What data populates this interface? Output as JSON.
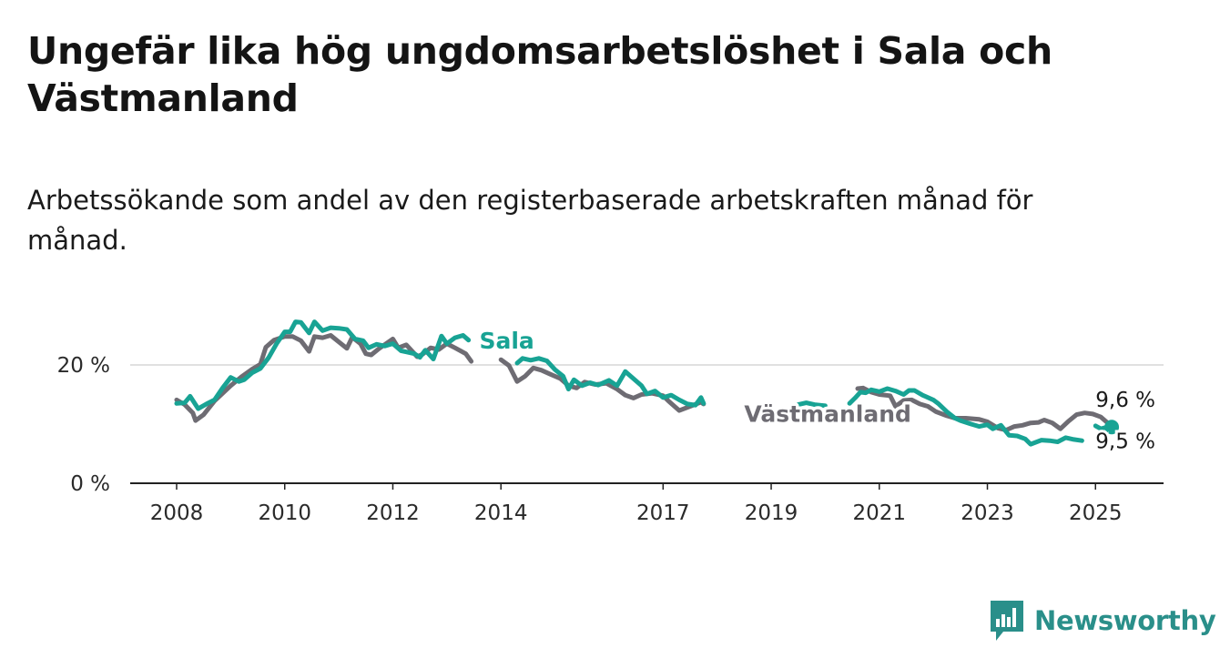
{
  "title": "Ungefär lika hög ungdomsarbetslöshet i Sala och Västmanland",
  "subtitle": "Arbetssökande som andel av den registerbaserade arbetskraften månad för månad.",
  "brand": {
    "name": "Newsworthy",
    "color": "#2a8f8a",
    "icon": "newsworthy-logo-icon"
  },
  "chart_data": {
    "type": "line",
    "title": "Ungefär lika hög ungdomsarbetslöshet i Sala och Västmanland",
    "subtitle": "Arbetssökande som andel av den registerbaserade arbetskraften månad för månad.",
    "xlabel": "",
    "ylabel": "",
    "x_ticks": [
      "2008",
      "2010",
      "2012",
      "2014",
      "2017",
      "2019",
      "2021",
      "2023",
      "2025"
    ],
    "x_tick_values": [
      2008,
      2010,
      2012,
      2014,
      2017,
      2019,
      2021,
      2023,
      2025
    ],
    "y_ticks": [
      "0 %",
      "20 %"
    ],
    "y_tick_values": [
      0,
      20
    ],
    "xlim": [
      2008,
      2025.4
    ],
    "ylim": [
      0,
      30
    ],
    "grid": true,
    "legend": "inline labels",
    "series": [
      {
        "name": "Sala",
        "color": "#18a394",
        "end_label": "9,5 %",
        "segments": [
          [
            [
              2008.0,
              13.5
            ],
            [
              2008.15,
              13.6
            ],
            [
              2008.25,
              14.7
            ],
            [
              2008.4,
              12.6
            ],
            [
              2008.55,
              13.4
            ],
            [
              2008.7,
              14.1
            ],
            [
              2008.85,
              16.1
            ],
            [
              2009.0,
              17.9
            ],
            [
              2009.15,
              17.2
            ],
            [
              2009.25,
              17.5
            ],
            [
              2009.4,
              18.7
            ],
            [
              2009.55,
              19.4
            ],
            [
              2009.7,
              21.2
            ],
            [
              2009.85,
              23.6
            ],
            [
              2010.0,
              25.6
            ],
            [
              2010.1,
              25.6
            ],
            [
              2010.2,
              27.3
            ],
            [
              2010.3,
              27.2
            ],
            [
              2010.45,
              25.4
            ],
            [
              2010.55,
              27.3
            ],
            [
              2010.7,
              25.8
            ],
            [
              2010.85,
              26.3
            ],
            [
              2011.0,
              26.2
            ],
            [
              2011.15,
              26.0
            ],
            [
              2011.3,
              24.4
            ],
            [
              2011.45,
              24.1
            ],
            [
              2011.55,
              22.9
            ],
            [
              2011.7,
              23.5
            ],
            [
              2011.85,
              23.2
            ],
            [
              2012.0,
              23.6
            ],
            [
              2012.15,
              22.4
            ],
            [
              2012.25,
              22.2
            ],
            [
              2012.4,
              21.9
            ],
            [
              2012.5,
              21.3
            ],
            [
              2012.6,
              22.5
            ],
            [
              2012.75,
              21.0
            ],
            [
              2012.9,
              24.9
            ],
            [
              2013.0,
              23.6
            ],
            [
              2013.15,
              24.6
            ],
            [
              2013.3,
              25.0
            ],
            [
              2013.4,
              24.2
            ]
          ],
          [
            [
              2014.3,
              20.3
            ],
            [
              2014.4,
              21.1
            ],
            [
              2014.55,
              20.8
            ],
            [
              2014.7,
              21.1
            ],
            [
              2014.85,
              20.7
            ],
            [
              2015.0,
              19.2
            ],
            [
              2015.15,
              18.1
            ],
            [
              2015.25,
              15.9
            ],
            [
              2015.35,
              17.5
            ],
            [
              2015.5,
              16.5
            ],
            [
              2015.65,
              17.0
            ],
            [
              2015.8,
              16.6
            ],
            [
              2016.0,
              17.4
            ],
            [
              2016.15,
              16.5
            ],
            [
              2016.3,
              18.9
            ],
            [
              2016.45,
              17.7
            ],
            [
              2016.6,
              16.5
            ],
            [
              2016.7,
              15.1
            ],
            [
              2016.85,
              15.6
            ],
            [
              2017.0,
              14.5
            ],
            [
              2017.15,
              14.9
            ],
            [
              2017.3,
              14.1
            ],
            [
              2017.45,
              13.4
            ],
            [
              2017.6,
              13.2
            ],
            [
              2017.7,
              14.5
            ],
            [
              2017.75,
              13.5
            ]
          ],
          [
            [
              2019.5,
              13.3
            ],
            [
              2019.65,
              13.6
            ],
            [
              2019.8,
              13.3
            ],
            [
              2020.0,
              13.1
            ]
          ],
          [
            [
              2020.45,
              13.5
            ],
            [
              2020.55,
              14.4
            ],
            [
              2020.65,
              15.4
            ],
            [
              2020.75,
              15.3
            ],
            [
              2020.85,
              15.8
            ],
            [
              2021.0,
              15.5
            ],
            [
              2021.15,
              16.0
            ],
            [
              2021.3,
              15.6
            ],
            [
              2021.45,
              15.0
            ],
            [
              2021.55,
              15.7
            ],
            [
              2021.65,
              15.7
            ],
            [
              2021.8,
              14.9
            ],
            [
              2022.0,
              14.1
            ],
            [
              2022.1,
              13.4
            ],
            [
              2022.25,
              12.1
            ],
            [
              2022.4,
              11.0
            ],
            [
              2022.5,
              10.6
            ],
            [
              2022.7,
              10.0
            ],
            [
              2022.85,
              9.6
            ],
            [
              2023.0,
              9.9
            ],
            [
              2023.1,
              9.2
            ],
            [
              2023.25,
              9.8
            ],
            [
              2023.4,
              8.1
            ],
            [
              2023.55,
              8.0
            ],
            [
              2023.7,
              7.5
            ],
            [
              2023.8,
              6.6
            ],
            [
              2024.0,
              7.3
            ],
            [
              2024.15,
              7.2
            ],
            [
              2024.3,
              7.0
            ],
            [
              2024.45,
              7.7
            ],
            [
              2024.6,
              7.4
            ],
            [
              2024.75,
              7.2
            ]
          ],
          [
            [
              2025.0,
              9.7
            ],
            [
              2025.1,
              9.2
            ],
            [
              2025.25,
              9.6
            ],
            [
              2025.3,
              9.5
            ]
          ]
        ]
      },
      {
        "name": "Västmanland",
        "color": "#6e6c73",
        "end_label": "9,6 %",
        "segments": [
          [
            [
              2008.0,
              14.1
            ],
            [
              2008.15,
              13.3
            ],
            [
              2008.3,
              11.9
            ],
            [
              2008.35,
              10.6
            ],
            [
              2008.5,
              11.6
            ],
            [
              2008.7,
              13.9
            ],
            [
              2008.85,
              15.2
            ],
            [
              2009.0,
              16.5
            ],
            [
              2009.2,
              18.0
            ],
            [
              2009.4,
              19.3
            ],
            [
              2009.55,
              20.1
            ],
            [
              2009.65,
              23.0
            ],
            [
              2009.8,
              24.2
            ],
            [
              2010.0,
              24.8
            ],
            [
              2010.15,
              24.8
            ],
            [
              2010.3,
              24.1
            ],
            [
              2010.45,
              22.3
            ],
            [
              2010.55,
              24.8
            ],
            [
              2010.7,
              24.6
            ],
            [
              2010.85,
              25.0
            ],
            [
              2011.0,
              23.9
            ],
            [
              2011.15,
              22.8
            ],
            [
              2011.25,
              24.7
            ],
            [
              2011.4,
              23.6
            ],
            [
              2011.5,
              21.9
            ],
            [
              2011.6,
              21.7
            ],
            [
              2011.75,
              22.8
            ],
            [
              2012.0,
              24.4
            ],
            [
              2012.1,
              22.9
            ],
            [
              2012.25,
              23.4
            ],
            [
              2012.45,
              21.4
            ],
            [
              2012.55,
              21.8
            ],
            [
              2012.7,
              22.9
            ],
            [
              2012.85,
              22.6
            ],
            [
              2013.0,
              23.6
            ],
            [
              2013.15,
              22.9
            ],
            [
              2013.35,
              21.9
            ],
            [
              2013.45,
              20.6
            ]
          ],
          [
            [
              2014.0,
              20.9
            ],
            [
              2014.15,
              19.9
            ],
            [
              2014.3,
              17.2
            ],
            [
              2014.45,
              18.1
            ],
            [
              2014.6,
              19.5
            ],
            [
              2014.75,
              19.1
            ],
            [
              2014.9,
              18.5
            ],
            [
              2015.1,
              17.7
            ],
            [
              2015.25,
              16.5
            ],
            [
              2015.4,
              16.1
            ],
            [
              2015.55,
              17.1
            ],
            [
              2015.75,
              16.7
            ],
            [
              2015.95,
              16.9
            ],
            [
              2016.15,
              15.9
            ],
            [
              2016.3,
              14.9
            ],
            [
              2016.45,
              14.4
            ],
            [
              2016.6,
              15.0
            ],
            [
              2016.8,
              15.2
            ],
            [
              2017.0,
              14.8
            ],
            [
              2017.1,
              13.9
            ],
            [
              2017.3,
              12.3
            ],
            [
              2017.5,
              13.0
            ],
            [
              2017.7,
              13.7
            ],
            [
              2017.75,
              13.4
            ]
          ],
          [
            [
              2020.6,
              16.0
            ],
            [
              2020.7,
              16.1
            ],
            [
              2020.85,
              15.4
            ],
            [
              2021.0,
              15.0
            ],
            [
              2021.2,
              14.8
            ],
            [
              2021.3,
              13.0
            ],
            [
              2021.45,
              14.0
            ],
            [
              2021.6,
              14.1
            ],
            [
              2021.75,
              13.4
            ],
            [
              2021.9,
              13.0
            ],
            [
              2022.05,
              12.1
            ],
            [
              2022.25,
              11.4
            ],
            [
              2022.4,
              11.0
            ],
            [
              2022.6,
              11.0
            ],
            [
              2022.85,
              10.8
            ],
            [
              2023.0,
              10.4
            ],
            [
              2023.2,
              9.3
            ],
            [
              2023.35,
              9.0
            ],
            [
              2023.5,
              9.6
            ],
            [
              2023.65,
              9.8
            ],
            [
              2023.8,
              10.2
            ],
            [
              2023.95,
              10.3
            ],
            [
              2024.05,
              10.7
            ],
            [
              2024.2,
              10.2
            ],
            [
              2024.35,
              9.2
            ],
            [
              2024.5,
              10.5
            ],
            [
              2024.65,
              11.6
            ],
            [
              2024.8,
              11.9
            ],
            [
              2024.95,
              11.7
            ],
            [
              2025.1,
              11.2
            ],
            [
              2025.3,
              9.6
            ]
          ]
        ]
      }
    ]
  }
}
